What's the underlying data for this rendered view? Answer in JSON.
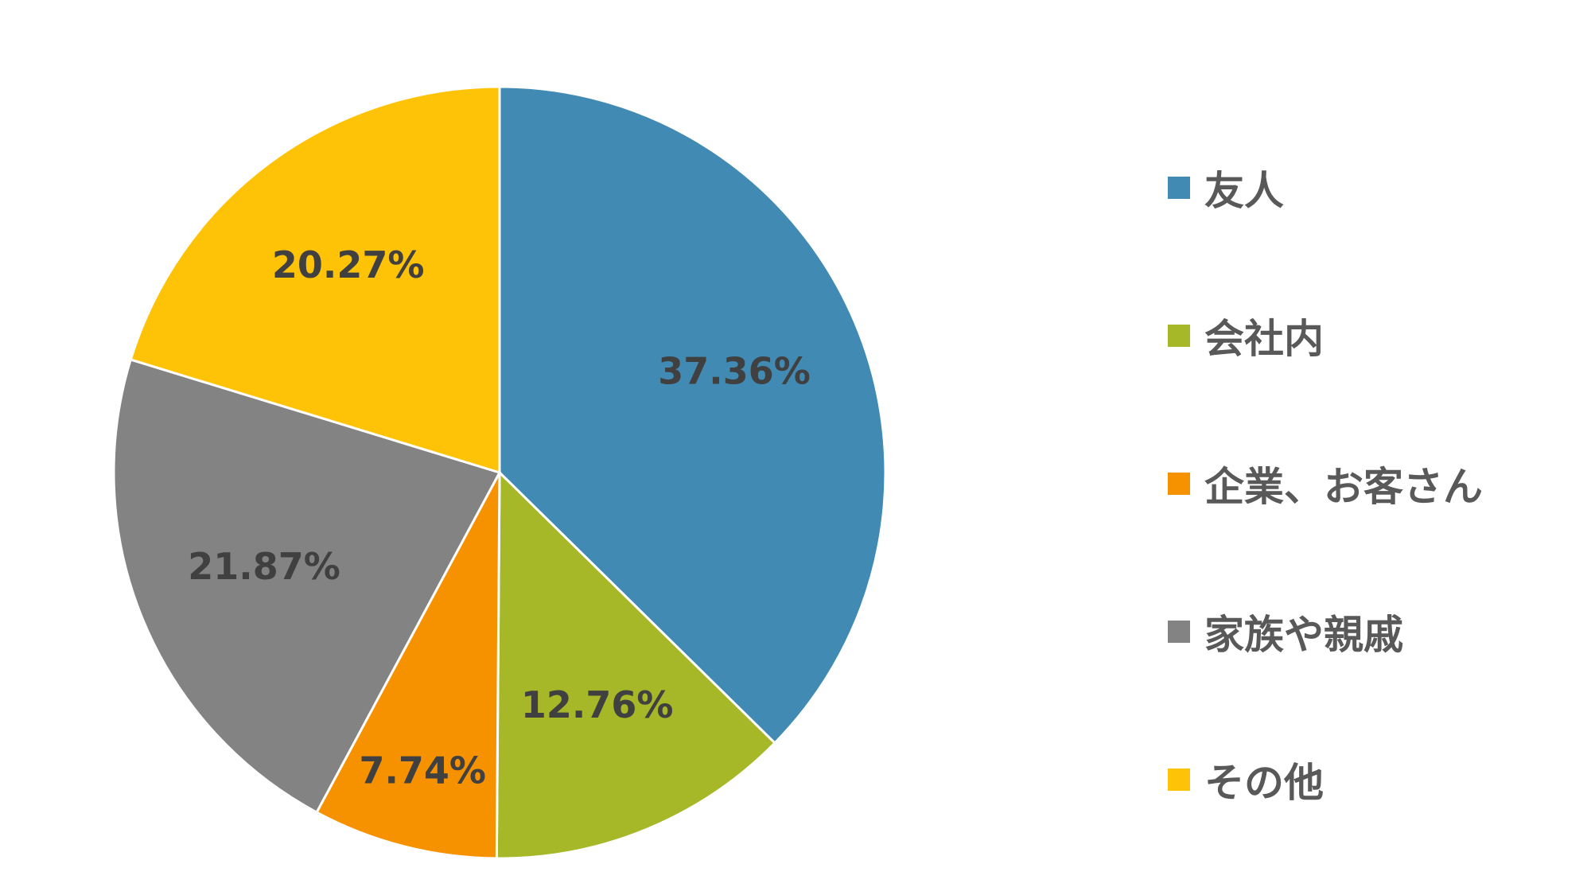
{
  "chart_data": {
    "type": "pie",
    "title": "",
    "legend_position": "right",
    "start_angle_deg": 0,
    "direction": "clockwise",
    "slices": [
      {
        "name": "友人",
        "value": 37.36,
        "label": "37.36%",
        "color": "#418AB3"
      },
      {
        "name": "会社内",
        "value": 12.76,
        "label": "12.76%",
        "color": "#A6B727"
      },
      {
        "name": "企業、お客さん",
        "value": 7.74,
        "label": "7.74%",
        "color": "#F69200"
      },
      {
        "name": "家族や親戚",
        "value": 21.87,
        "label": "21.87%",
        "color": "#838383"
      },
      {
        "name": "その他",
        "value": 20.27,
        "label": "20.27%",
        "color": "#FEC306"
      }
    ]
  }
}
